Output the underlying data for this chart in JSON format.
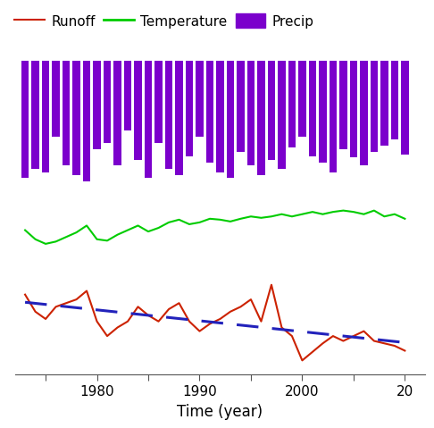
{
  "years": [
    1973,
    1974,
    1975,
    1976,
    1977,
    1978,
    1979,
    1980,
    1981,
    1982,
    1983,
    1984,
    1985,
    1986,
    1987,
    1988,
    1989,
    1990,
    1991,
    1992,
    1993,
    1994,
    1995,
    1996,
    1997,
    1998,
    1999,
    2000,
    2001,
    2002,
    2003,
    2004,
    2005,
    2006,
    2007,
    2008,
    2009,
    2010
  ],
  "precipitation": [
    92,
    85,
    88,
    60,
    82,
    90,
    95,
    70,
    65,
    82,
    55,
    78,
    92,
    65,
    85,
    90,
    75,
    60,
    80,
    88,
    92,
    72,
    82,
    90,
    78,
    85,
    68,
    60,
    75,
    80,
    88,
    70,
    76,
    82,
    72,
    67,
    62,
    74
  ],
  "temperature": [
    6.5,
    4.5,
    3.5,
    4.0,
    5.0,
    6.0,
    7.5,
    4.5,
    4.2,
    5.5,
    6.5,
    7.5,
    6.2,
    7.0,
    8.2,
    8.8,
    7.8,
    8.2,
    9.0,
    8.8,
    8.4,
    9.0,
    9.5,
    9.2,
    9.5,
    10.0,
    9.5,
    10.0,
    10.5,
    10.0,
    10.5,
    10.8,
    10.5,
    10.0,
    10.8,
    9.5,
    10.0,
    9.0
  ],
  "runoff": [
    0.82,
    0.68,
    0.62,
    0.72,
    0.75,
    0.78,
    0.85,
    0.6,
    0.48,
    0.55,
    0.6,
    0.72,
    0.65,
    0.6,
    0.7,
    0.75,
    0.6,
    0.52,
    0.58,
    0.62,
    0.68,
    0.72,
    0.78,
    0.6,
    0.9,
    0.55,
    0.48,
    0.28,
    0.35,
    0.42,
    0.48,
    0.44,
    0.48,
    0.52,
    0.44,
    0.42,
    0.4,
    0.36
  ],
  "precip_color": "#7B00CC",
  "temp_color": "#00CC00",
  "runoff_color": "#CC2200",
  "trend_color": "#2222BB",
  "xlabel": "Time (year)",
  "background_color": "#ffffff",
  "figsize": [
    4.74,
    4.74
  ],
  "dpi": 100
}
